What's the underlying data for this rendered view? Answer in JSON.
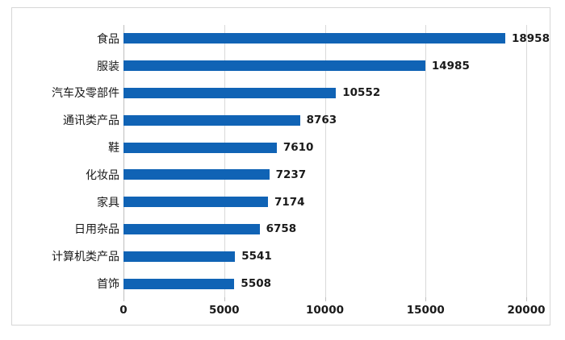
{
  "chart_data": {
    "type": "bar",
    "orientation": "horizontal",
    "title": "",
    "categories": [
      "食品",
      "服装",
      "汽车及零部件",
      "通讯类产品",
      "鞋",
      "化妆品",
      "家具",
      "日用杂品",
      "计算机类产品",
      "首饰"
    ],
    "values": [
      18958,
      14985,
      10552,
      8763,
      7610,
      7237,
      7174,
      6758,
      5541,
      5508
    ],
    "value_labels": [
      "18958",
      "14985",
      "10552",
      "8763",
      "7610",
      "7237",
      "7174",
      "6758",
      "5541",
      "5508"
    ],
    "xlim": [
      0,
      20000
    ],
    "xticks": [
      0,
      5000,
      10000,
      15000,
      20000
    ],
    "xtick_labels": [
      "0",
      "5000",
      "10000",
      "15000",
      "20000"
    ],
    "xlabel": "",
    "ylabel": "",
    "grid": true,
    "legend": false,
    "data_labels": true,
    "colors": {
      "bar": "#1063B5",
      "gridline": "#D9D9D9",
      "axis_line": "#BFBFBF",
      "frame_border": "#D6D6D6",
      "text": "#1A1A1A",
      "background": "#FFFFFF"
    }
  }
}
